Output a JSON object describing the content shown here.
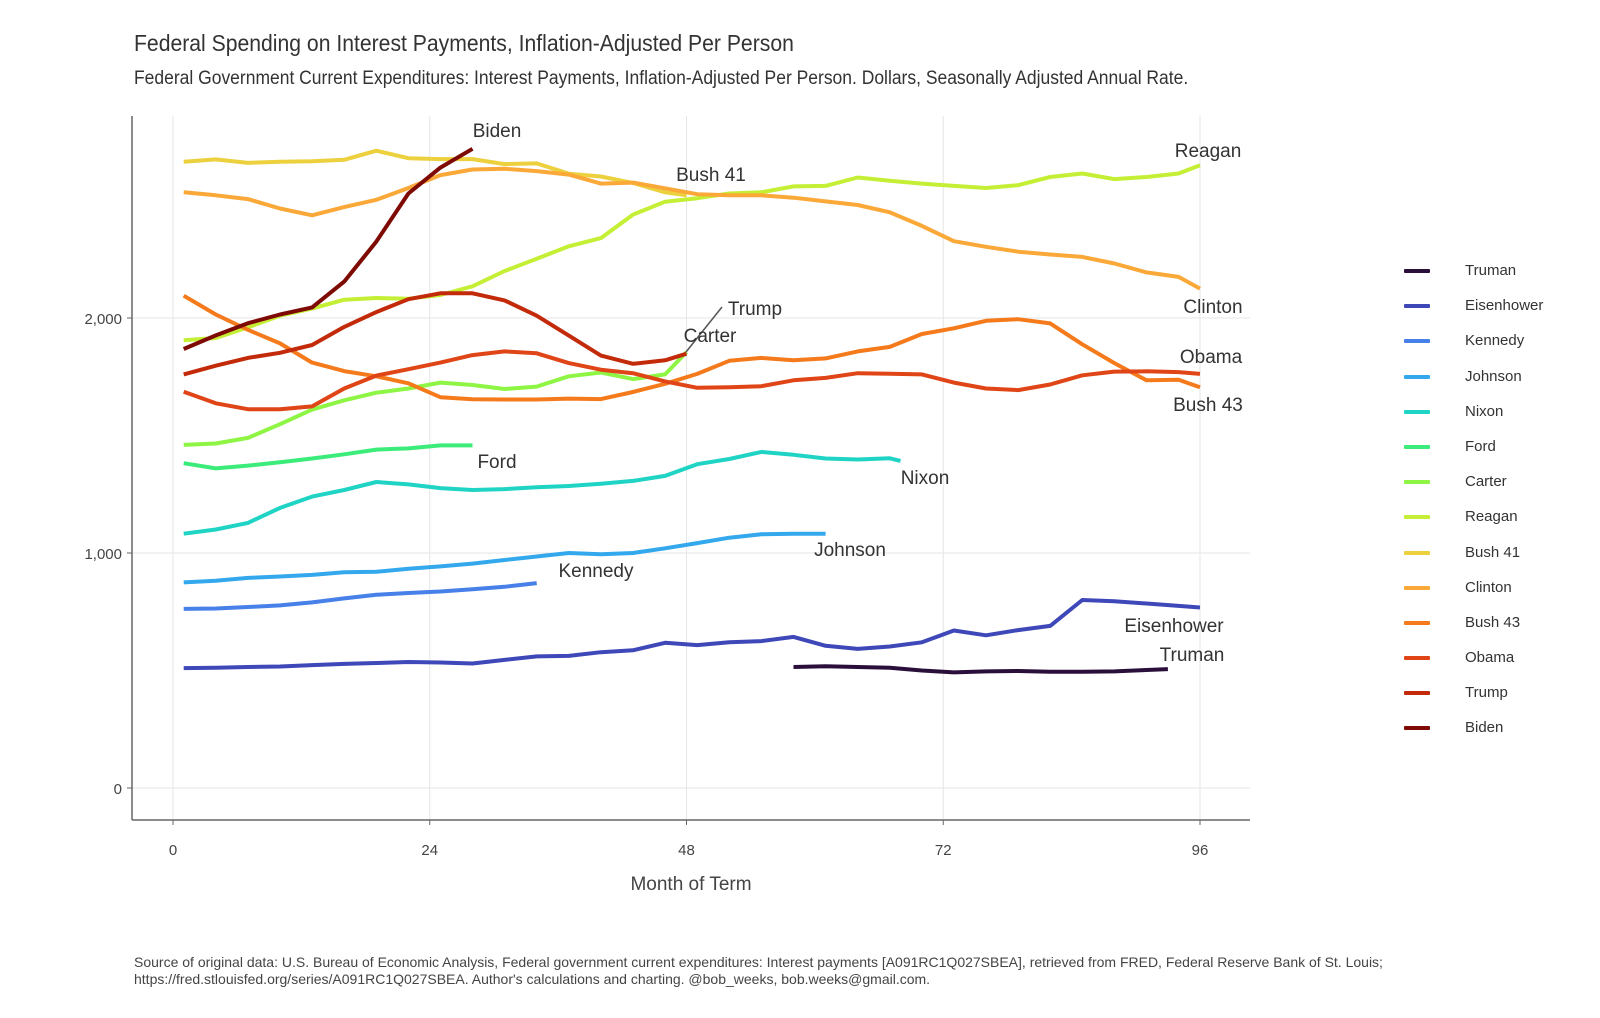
{
  "title": "Federal Spending on Interest Payments, Inflation-Adjusted Per Person",
  "subtitle": "Federal Government Current Expenditures: Interest Payments, Inflation-Adjusted Per Person. Dollars, Seasonally Adjusted Annual Rate.",
  "caption": "Source of original data: U.S. Bureau of Economic Analysis, Federal government current expenditures: Interest payments [A091RC1Q027SBEA], retrieved from FRED, Federal Reserve Bank of St. Louis; https://fred.stlouisfed.org/series/A091RC1Q027SBEA. Author's calculations and charting. @bob_weeks, bob.weeks@gmail.com.",
  "chart_data": {
    "type": "line",
    "title": "Federal Spending on Interest Payments, Inflation-Adjusted Per Person",
    "xlabel": "Month of Term",
    "ylabel": "",
    "xlim": [
      -4,
      101
    ],
    "ylim": [
      -140,
      2860
    ],
    "x_ticks": [
      0,
      24,
      48,
      72,
      96
    ],
    "x_tick_labels": [
      "0",
      "24",
      "48",
      "72",
      "96"
    ],
    "y_ticks": [
      0,
      1000,
      2000
    ],
    "y_tick_labels": [
      "0",
      "1,000",
      "2,000"
    ],
    "grid": true,
    "legend_position": "right",
    "series": [
      {
        "name": "Truman",
        "color": "#2b0f3b",
        "label": "Truman",
        "x": [
          58,
          61,
          64,
          67,
          70,
          73,
          76,
          79,
          82,
          85,
          88,
          91,
          93
        ],
        "values": [
          515,
          518,
          515,
          512,
          500,
          492,
          496,
          498,
          495,
          495,
          496,
          502,
          506
        ]
      },
      {
        "name": "Eisenhower",
        "color": "#3e48b8",
        "label": "Eisenhower",
        "x": [
          1,
          4,
          7,
          10,
          13,
          16,
          19,
          22,
          25,
          28,
          31,
          34,
          37,
          40,
          43,
          46,
          49,
          52,
          55,
          58,
          61,
          64,
          67,
          70,
          73,
          76,
          79,
          82,
          85,
          88,
          91,
          94,
          96
        ],
        "values": [
          510,
          512,
          515,
          517,
          523,
          528,
          532,
          536,
          534,
          530,
          545,
          560,
          562,
          578,
          586,
          618,
          608,
          620,
          625,
          643,
          605,
          592,
          602,
          620,
          670,
          650,
          672,
          690,
          800,
          795,
          785,
          775,
          768
        ]
      },
      {
        "name": "Kennedy",
        "color": "#4780e8",
        "label": "Kennedy",
        "x": [
          1,
          4,
          7,
          10,
          13,
          16,
          19,
          22,
          25,
          28,
          31,
          34
        ],
        "values": [
          762,
          764,
          770,
          777,
          790,
          807,
          822,
          830,
          836,
          846,
          856,
          872
        ]
      },
      {
        "name": "Johnson",
        "color": "#34a8ed",
        "label": "Johnson",
        "x": [
          1,
          4,
          7,
          10,
          13,
          16,
          19,
          22,
          25,
          28,
          31,
          34,
          37,
          40,
          43,
          46,
          49,
          52,
          55,
          58,
          61
        ],
        "values": [
          875,
          882,
          894,
          900,
          907,
          918,
          920,
          933,
          943,
          955,
          970,
          985,
          1000,
          995,
          1000,
          1020,
          1042,
          1065,
          1080,
          1082,
          1082
        ]
      },
      {
        "name": "Nixon",
        "color": "#1fd4c4",
        "label": "Nixon",
        "x": [
          1,
          4,
          7,
          10,
          13,
          16,
          19,
          22,
          25,
          28,
          31,
          34,
          37,
          40,
          43,
          46,
          49,
          52,
          55,
          58,
          61,
          64,
          67,
          68
        ],
        "values": [
          1082,
          1100,
          1128,
          1192,
          1240,
          1268,
          1302,
          1292,
          1276,
          1268,
          1272,
          1280,
          1285,
          1295,
          1307,
          1328,
          1378,
          1400,
          1430,
          1418,
          1402,
          1398,
          1403,
          1392
        ]
      },
      {
        "name": "Ford",
        "color": "#3cec7a",
        "label": "Ford",
        "x": [
          1,
          4,
          7,
          10,
          13,
          16,
          19,
          22,
          25,
          28
        ],
        "values": [
          1382,
          1360,
          1372,
          1386,
          1402,
          1420,
          1440,
          1445,
          1458,
          1458
        ]
      },
      {
        "name": "Carter",
        "color": "#8ef545",
        "label": "Carter",
        "x": [
          1,
          4,
          7,
          10,
          13,
          16,
          19,
          22,
          25,
          28,
          31,
          34,
          37,
          40,
          43,
          46,
          48
        ],
        "values": [
          1460,
          1466,
          1490,
          1548,
          1610,
          1650,
          1682,
          1700,
          1725,
          1715,
          1698,
          1708,
          1752,
          1768,
          1740,
          1760,
          1855
        ]
      },
      {
        "name": "Reagan",
        "color": "#c4ef35",
        "label": "Reagan",
        "x": [
          1,
          4,
          7,
          10,
          13,
          16,
          19,
          22,
          25,
          28,
          31,
          34,
          37,
          40,
          43,
          46,
          49,
          52,
          55,
          58,
          61,
          64,
          67,
          70,
          73,
          76,
          79,
          82,
          85,
          88,
          91,
          94,
          96
        ],
        "values": [
          1905,
          1915,
          1960,
          2010,
          2040,
          2078,
          2085,
          2082,
          2098,
          2135,
          2200,
          2252,
          2305,
          2340,
          2440,
          2495,
          2510,
          2530,
          2535,
          2560,
          2562,
          2598,
          2584,
          2572,
          2562,
          2553,
          2565,
          2600,
          2615,
          2591,
          2600,
          2615,
          2650
        ]
      },
      {
        "name": "Bush 41",
        "color": "#ecd03d",
        "label": "Bush 41",
        "x": [
          1,
          4,
          7,
          10,
          13,
          16,
          19,
          22,
          25,
          28,
          31,
          34,
          37,
          40,
          43,
          46,
          48
        ],
        "values": [
          2665,
          2675,
          2660,
          2665,
          2667,
          2673,
          2712,
          2680,
          2676,
          2676,
          2655,
          2658,
          2614,
          2602,
          2575,
          2535,
          2522
        ]
      },
      {
        "name": "Clinton",
        "color": "#faa838",
        "label": "Clinton",
        "x": [
          1,
          4,
          7,
          10,
          13,
          16,
          19,
          22,
          25,
          28,
          31,
          34,
          37,
          40,
          43,
          46,
          49,
          52,
          55,
          58,
          61,
          64,
          67,
          70,
          73,
          76,
          79,
          82,
          85,
          88,
          91,
          94,
          96
        ],
        "values": [
          2535,
          2522,
          2506,
          2466,
          2437,
          2472,
          2503,
          2553,
          2608,
          2632,
          2635,
          2625,
          2610,
          2572,
          2576,
          2552,
          2527,
          2522,
          2522,
          2512,
          2496,
          2481,
          2450,
          2392,
          2327,
          2303,
          2282,
          2270,
          2260,
          2232,
          2194,
          2175,
          2125
        ]
      },
      {
        "name": "Bush 43",
        "color": "#f47a1c",
        "label": "Bush 43",
        "x": [
          1,
          4,
          7,
          10,
          13,
          16,
          19,
          22,
          25,
          28,
          31,
          34,
          37,
          40,
          43,
          46,
          49,
          52,
          55,
          58,
          61,
          64,
          67,
          70,
          73,
          76,
          79,
          82,
          85,
          88,
          91,
          94,
          96
        ],
        "values": [
          2095,
          2015,
          1950,
          1892,
          1810,
          1774,
          1752,
          1722,
          1663,
          1654,
          1653,
          1653,
          1657,
          1655,
          1685,
          1720,
          1762,
          1818,
          1830,
          1820,
          1828,
          1858,
          1877,
          1932,
          1956,
          1988,
          1995,
          1977,
          1888,
          1808,
          1735,
          1737,
          1705
        ]
      },
      {
        "name": "Obama",
        "color": "#df4516",
        "label": "Obama",
        "x": [
          1,
          4,
          7,
          10,
          13,
          16,
          19,
          22,
          25,
          28,
          31,
          34,
          37,
          40,
          43,
          46,
          49,
          52,
          55,
          58,
          61,
          64,
          67,
          70,
          73,
          76,
          79,
          82,
          85,
          88,
          91,
          94,
          96
        ],
        "values": [
          1686,
          1637,
          1612,
          1612,
          1624,
          1700,
          1755,
          1782,
          1810,
          1842,
          1858,
          1850,
          1808,
          1780,
          1765,
          1730,
          1703,
          1705,
          1710,
          1735,
          1745,
          1765,
          1763,
          1760,
          1725,
          1700,
          1693,
          1717,
          1756,
          1772,
          1773,
          1770,
          1762
        ]
      },
      {
        "name": "Trump",
        "color": "#c22a09",
        "label": "Trump",
        "x": [
          1,
          4,
          7,
          10,
          13,
          16,
          19,
          22,
          25,
          28,
          31,
          34,
          37,
          40,
          43,
          46,
          48
        ],
        "values": [
          1760,
          1797,
          1830,
          1852,
          1885,
          1962,
          2025,
          2080,
          2105,
          2105,
          2075,
          2010,
          1925,
          1840,
          1805,
          1820,
          1848
        ]
      },
      {
        "name": "Biden",
        "color": "#7d0a03",
        "label": "Biden",
        "x": [
          1,
          4,
          7,
          10,
          13,
          16,
          19,
          22,
          25,
          28
        ],
        "values": [
          1868,
          1926,
          1978,
          2015,
          2045,
          2155,
          2325,
          2530,
          2640,
          2720
        ]
      }
    ]
  }
}
